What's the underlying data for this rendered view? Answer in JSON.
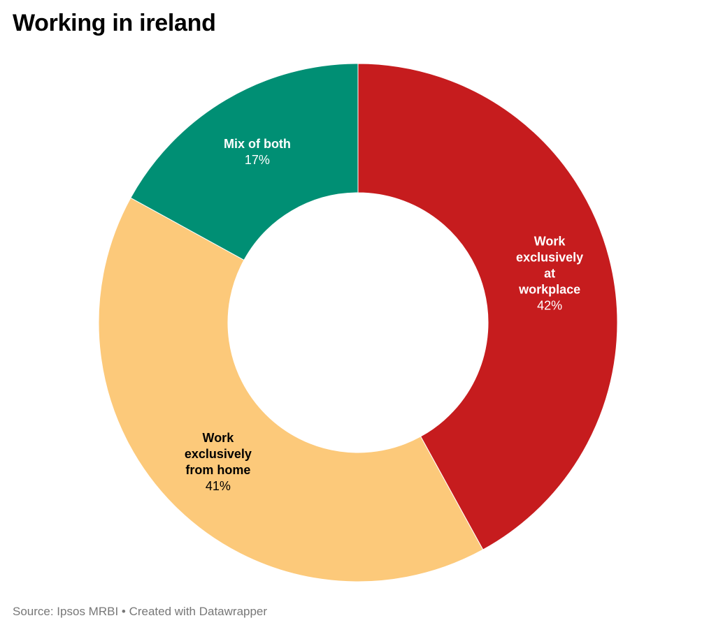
{
  "title": "Working in ireland",
  "source": "Source: Ipsos MRBI • Created with Datawrapper",
  "chart_data": {
    "type": "pie",
    "subtype": "donut",
    "title": "Working in ireland",
    "slices": [
      {
        "label": "Work\nexclusively\nat\nworkplace",
        "value": 42,
        "value_label": "42%",
        "color": "#c61c1e",
        "text_color": "#ffffff"
      },
      {
        "label": "Work\nexclusively\nfrom home",
        "value": 41,
        "value_label": "41%",
        "color": "#fcc97a",
        "text_color": "#000000"
      },
      {
        "label": "Mix of both",
        "value": 17,
        "value_label": "17%",
        "color": "#008f74",
        "text_color": "#ffffff"
      }
    ],
    "unit": "%",
    "start_angle": "12 o'clock",
    "direction": "clockwise",
    "legend": "none"
  }
}
